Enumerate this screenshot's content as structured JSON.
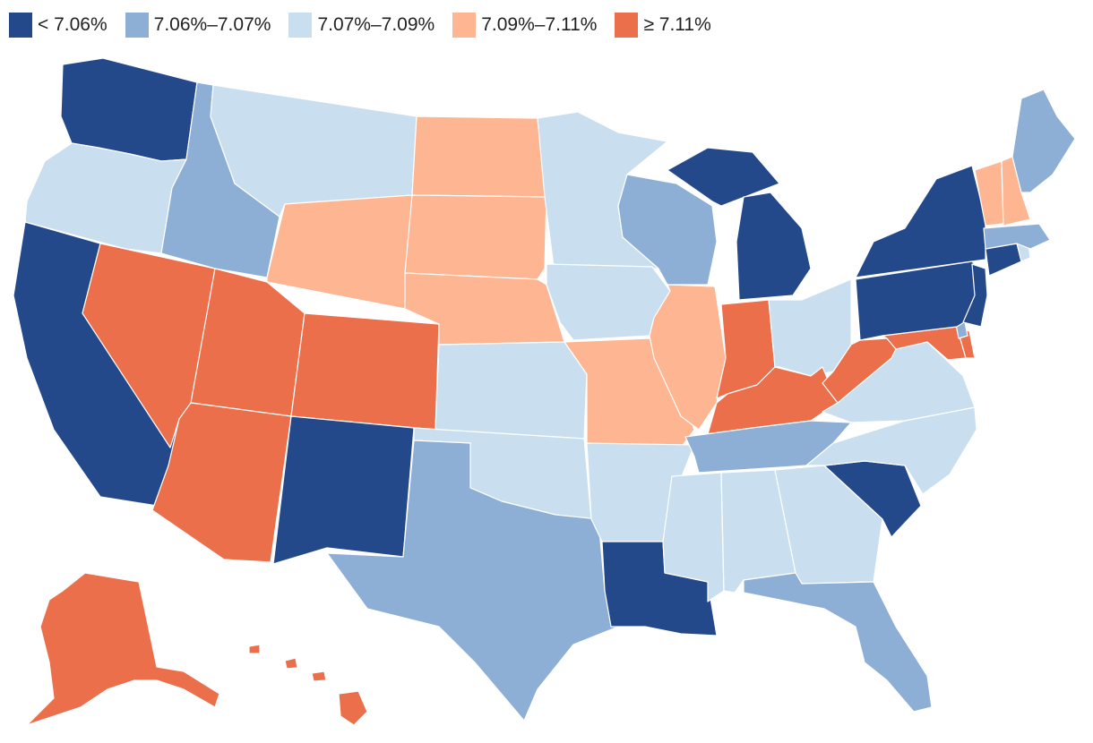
{
  "legend": {
    "bins": [
      {
        "id": "b1",
        "label": "< 7.06%",
        "color": "#24498b"
      },
      {
        "id": "b2",
        "label": "7.06%–7.07%",
        "color": "#8daed5"
      },
      {
        "id": "b3",
        "label": "7.07%–7.09%",
        "color": "#c9dfef"
      },
      {
        "id": "b4",
        "label": "7.09%–7.11%",
        "color": "#fdb592"
      },
      {
        "id": "b5",
        "label": "≥ 7.11%",
        "color": "#ea6f4a"
      }
    ]
  },
  "states": {
    "WA": "b1",
    "OR": "b3",
    "CA": "b1",
    "NV": "b5",
    "ID": "b2",
    "MT": "b3",
    "WY": "b4",
    "UT": "b5",
    "AZ": "b5",
    "CO": "b5",
    "NM": "b1",
    "ND": "b4",
    "SD": "b4",
    "NE": "b4",
    "KS": "b3",
    "OK": "b3",
    "TX": "b2",
    "MN": "b3",
    "IA": "b3",
    "MO": "b4",
    "AR": "b3",
    "LA": "b1",
    "WI": "b2",
    "IL": "b4",
    "MI": "b1",
    "IN": "b5",
    "OH": "b3",
    "KY": "b5",
    "TN": "b2",
    "MS": "b3",
    "AL": "b3",
    "GA": "b3",
    "FL": "b2",
    "SC": "b1",
    "NC": "b3",
    "VA": "b3",
    "WV": "b5",
    "MD": "b5",
    "DE": "b5",
    "DC": "b2",
    "PA": "b1",
    "NJ": "b1",
    "NY": "b1",
    "CT": "b1",
    "RI": "b3",
    "MA": "b2",
    "VT": "b4",
    "NH": "b4",
    "ME": "b2",
    "AK": "b5",
    "HI": "b5"
  }
}
